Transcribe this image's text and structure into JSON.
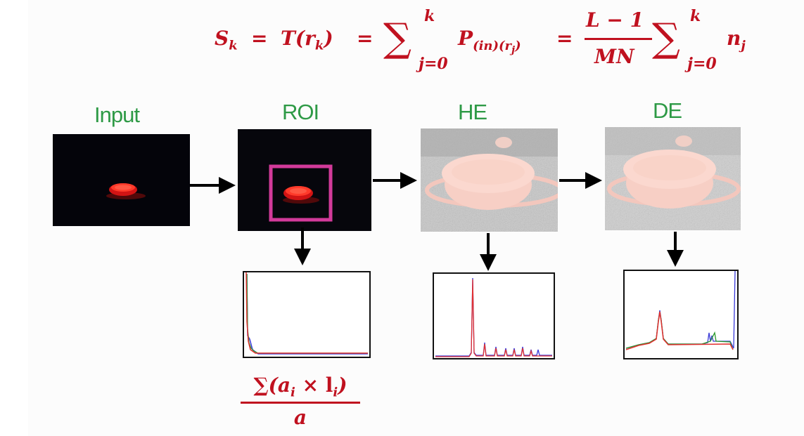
{
  "formula": {
    "lhs": "S",
    "lhs_sub": "k",
    "eq1": "=",
    "t_r": "T(r",
    "t_sub": "k",
    "t_close": ")",
    "eq2": "=",
    "sum_symbol": "∑",
    "sum_upper": "k",
    "sum_lower": "j=0",
    "p": "P",
    "p_sub": "(in)(r",
    "p_subsub": "j",
    "p_close": ")",
    "eq3": "=",
    "frac_num": "L − 1",
    "frac_den": "MN",
    "sum2_upper": "k",
    "sum2_lower": "j=0",
    "n": "n",
    "n_sub": "j"
  },
  "stages": {
    "input": "Input",
    "roi": "ROI",
    "he": "HE",
    "de": "DE"
  },
  "area_formula": {
    "numerator": "∑(a",
    "num_sub_a": "i",
    "num_times": "×  l",
    "num_sub_l": "i",
    "num_close": ")",
    "denominator": "a"
  },
  "colors": {
    "formula": "#c0111f",
    "label": "#2e9a46",
    "roi_box": "#d23a9a",
    "hist_red": "#e23030",
    "hist_blue": "#3a3ad8",
    "hist_green": "#2a9a2a"
  }
}
